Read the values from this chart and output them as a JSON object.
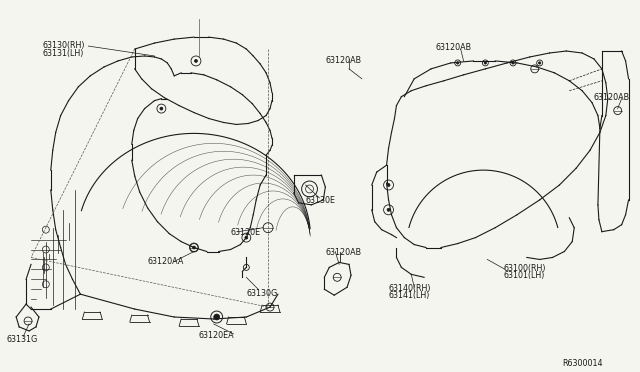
{
  "bg_color": "#f5f5f0",
  "line_color": "#1a1a1a",
  "fig_width": 6.4,
  "fig_height": 3.72,
  "dpi": 100,
  "ref_number": "R6300014",
  "labels": {
    "63130RH": "63130(RH)",
    "63131LH": "63131(LH)",
    "63120AB_top": "63120AB",
    "63120AB_mid": "63120AB",
    "63120AB_bot": "63120AB",
    "63120AB_tr": "63120AB",
    "63130E": "63130E",
    "63120E": "63120E",
    "63120AA": "63120AA",
    "63120EA": "63120EA",
    "63130G": "63130G",
    "63131G": "63131G",
    "63100RH": "63100(RH)",
    "63101LH": "63101(LH)",
    "63140RH": "63140(RH)",
    "63141LH": "63141(LH)"
  },
  "liner_outer_x": [
    195,
    210,
    230,
    255,
    278,
    295,
    305,
    308,
    305,
    295,
    275,
    250,
    220,
    185,
    155,
    120,
    88,
    62,
    42,
    28,
    20,
    18,
    20,
    28,
    40,
    55,
    72,
    90,
    110,
    132,
    155,
    175,
    190,
    195
  ],
  "liner_outer_y": [
    62,
    58,
    57,
    58,
    63,
    70,
    80,
    95,
    112,
    128,
    140,
    148,
    152,
    152,
    148,
    140,
    128,
    112,
    96,
    80,
    65,
    50,
    35,
    22,
    15,
    12,
    14,
    20,
    28,
    38,
    48,
    55,
    60,
    62
  ],
  "liner_inner_x": [
    250,
    240,
    225,
    208,
    195,
    185,
    178,
    175,
    178,
    188,
    202,
    218,
    232,
    242,
    250
  ],
  "liner_inner_y": [
    108,
    102,
    100,
    104,
    112,
    122,
    135,
    148,
    160,
    170,
    175,
    173,
    167,
    158,
    108
  ]
}
